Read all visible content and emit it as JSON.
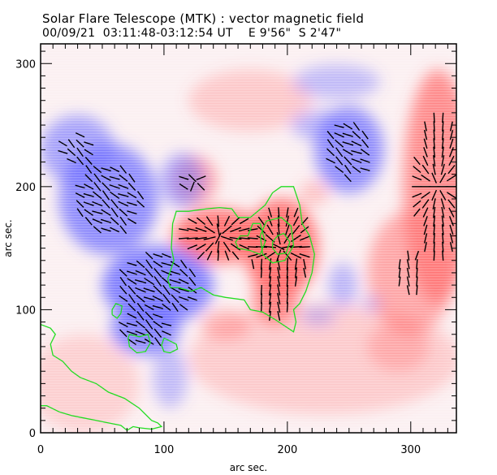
{
  "header": {
    "title": "Solar Flare Telescope (MTK) : vector magnetic field",
    "subtitle_date": "00/09/21",
    "subtitle_time": "03:11:48-03:12:54 UT",
    "subtitle_pos_ew": "E 9'56\"",
    "subtitle_pos_ns": "S 2'47\""
  },
  "chart_data": {
    "type": "heatmap",
    "title": "Solar Flare Telescope (MTK) : vector magnetic field",
    "subtitle": "00/09/21  03:11:48-03:12:54 UT    E 9'56\"  S 2'47\"",
    "xlabel": "arc sec.",
    "ylabel": "arc sec.",
    "xlim": [
      0,
      337
    ],
    "ylim": [
      0,
      316
    ],
    "xticks": [
      0,
      100,
      200,
      300
    ],
    "yticks": [
      0,
      100,
      200,
      300
    ],
    "xtick_labels": [
      "0",
      "100",
      "200",
      "300"
    ],
    "ytick_labels": [
      "0",
      "100",
      "200",
      "300"
    ],
    "minor_tick_step": 10,
    "colors": {
      "positive": "#ff5a5a",
      "negative": "#5a5aff",
      "contour": "#22dd22",
      "vector": "#000000",
      "frame": "#000000"
    },
    "polarity_regions": [
      {
        "name": "positive-core",
        "polarity": "positive",
        "x": 145,
        "y": 160,
        "rx": 38,
        "ry": 22,
        "strength": 0.95
      },
      {
        "name": "positive-core-east",
        "polarity": "positive",
        "x": 195,
        "y": 150,
        "rx": 30,
        "ry": 40,
        "strength": 0.95
      },
      {
        "name": "positive-bridge",
        "polarity": "positive",
        "x": 125,
        "y": 205,
        "rx": 18,
        "ry": 20,
        "strength": 0.6
      },
      {
        "name": "positive-tail-south",
        "polarity": "positive",
        "x": 190,
        "y": 110,
        "rx": 18,
        "ry": 22,
        "strength": 0.8
      },
      {
        "name": "positive-right-edge",
        "polarity": "positive",
        "x": 322,
        "y": 200,
        "rx": 28,
        "ry": 95,
        "strength": 0.75
      },
      {
        "name": "positive-right-mid",
        "polarity": "positive",
        "x": 300,
        "y": 130,
        "rx": 35,
        "ry": 50,
        "strength": 0.55
      },
      {
        "name": "positive-diffuse-north",
        "polarity": "positive",
        "x": 170,
        "y": 270,
        "rx": 50,
        "ry": 25,
        "strength": 0.3
      },
      {
        "name": "positive-diffuse-south",
        "polarity": "positive",
        "x": 230,
        "y": 60,
        "rx": 110,
        "ry": 45,
        "strength": 0.28
      },
      {
        "name": "positive-diffuse-sw",
        "polarity": "positive",
        "x": 35,
        "y": 40,
        "rx": 45,
        "ry": 40,
        "strength": 0.25
      },
      {
        "name": "positive-patch-mid",
        "polarity": "positive",
        "x": 222,
        "y": 195,
        "rx": 12,
        "ry": 10,
        "strength": 0.35
      },
      {
        "name": "positive-patch-south",
        "polarity": "positive",
        "x": 150,
        "y": 88,
        "rx": 20,
        "ry": 12,
        "strength": 0.45
      },
      {
        "name": "positive-patch-se",
        "polarity": "positive",
        "x": 290,
        "y": 70,
        "rx": 25,
        "ry": 20,
        "strength": 0.35
      },
      {
        "name": "negative-west-arm",
        "polarity": "negative",
        "x": 55,
        "y": 190,
        "rx": 40,
        "ry": 45,
        "strength": 0.75
      },
      {
        "name": "negative-north-arm",
        "polarity": "negative",
        "x": 30,
        "y": 230,
        "rx": 30,
        "ry": 28,
        "strength": 0.6
      },
      {
        "name": "negative-central",
        "polarity": "negative",
        "x": 95,
        "y": 120,
        "rx": 45,
        "ry": 32,
        "strength": 0.85
      },
      {
        "name": "negative-south",
        "polarity": "negative",
        "x": 85,
        "y": 85,
        "rx": 28,
        "ry": 22,
        "strength": 0.8
      },
      {
        "name": "negative-lower-tail",
        "polarity": "negative",
        "x": 105,
        "y": 45,
        "rx": 14,
        "ry": 25,
        "strength": 0.4
      },
      {
        "name": "negative-upper-band",
        "polarity": "negative",
        "x": 115,
        "y": 205,
        "rx": 18,
        "ry": 22,
        "strength": 0.55
      },
      {
        "name": "negative-ne",
        "polarity": "negative",
        "x": 250,
        "y": 230,
        "rx": 28,
        "ry": 35,
        "strength": 0.75
      },
      {
        "name": "negative-ne-top",
        "polarity": "negative",
        "x": 240,
        "y": 285,
        "rx": 35,
        "ry": 14,
        "strength": 0.4
      },
      {
        "name": "negative-ne-arm",
        "polarity": "negative",
        "x": 225,
        "y": 250,
        "rx": 22,
        "ry": 12,
        "strength": 0.45
      },
      {
        "name": "negative-east-mid",
        "polarity": "negative",
        "x": 245,
        "y": 120,
        "rx": 12,
        "ry": 18,
        "strength": 0.45
      },
      {
        "name": "negative-east-lower",
        "polarity": "negative",
        "x": 225,
        "y": 95,
        "rx": 14,
        "ry": 8,
        "strength": 0.35
      },
      {
        "name": "negative-east-patch",
        "polarity": "negative",
        "x": 268,
        "y": 105,
        "rx": 8,
        "ry": 6,
        "strength": 0.35
      }
    ],
    "contours": [
      {
        "name": "contour-main",
        "points": [
          [
            103,
            125
          ],
          [
            105,
            118
          ],
          [
            112,
            118
          ],
          [
            122,
            115
          ],
          [
            130,
            118
          ],
          [
            140,
            112
          ],
          [
            150,
            110
          ],
          [
            165,
            108
          ],
          [
            170,
            100
          ],
          [
            180,
            98
          ],
          [
            190,
            92
          ],
          [
            205,
            82
          ],
          [
            207,
            90
          ],
          [
            205,
            100
          ],
          [
            210,
            105
          ],
          [
            215,
            115
          ],
          [
            220,
            130
          ],
          [
            222,
            145
          ],
          [
            218,
            160
          ],
          [
            212,
            170
          ],
          [
            210,
            185
          ],
          [
            205,
            200
          ],
          [
            195,
            200
          ],
          [
            188,
            195
          ],
          [
            182,
            185
          ],
          [
            170,
            175
          ],
          [
            160,
            175
          ],
          [
            155,
            182
          ],
          [
            145,
            183
          ],
          [
            135,
            182
          ],
          [
            120,
            180
          ],
          [
            110,
            180
          ],
          [
            107,
            170
          ],
          [
            106,
            150
          ],
          [
            108,
            140
          ],
          [
            103,
            125
          ]
        ]
      },
      {
        "name": "contour-inner-west",
        "points": [
          [
            160,
            150
          ],
          [
            170,
            148
          ],
          [
            178,
            145
          ],
          [
            182,
            155
          ],
          [
            178,
            170
          ],
          [
            172,
            170
          ],
          [
            168,
            160
          ],
          [
            162,
            160
          ],
          [
            158,
            155
          ],
          [
            160,
            150
          ]
        ]
      },
      {
        "name": "contour-inner-east",
        "points": [
          [
            180,
            145
          ],
          [
            188,
            138
          ],
          [
            198,
            140
          ],
          [
            205,
            152
          ],
          [
            203,
            168
          ],
          [
            195,
            175
          ],
          [
            183,
            172
          ],
          [
            178,
            160
          ],
          [
            180,
            145
          ]
        ]
      },
      {
        "name": "contour-core-east",
        "points": [
          [
            188,
            150
          ],
          [
            192,
            145
          ],
          [
            199,
            146
          ],
          [
            202,
            155
          ],
          [
            197,
            162
          ],
          [
            192,
            160
          ],
          [
            188,
            155
          ],
          [
            188,
            150
          ]
        ]
      },
      {
        "name": "contour-small-1",
        "points": [
          [
            58,
            96
          ],
          [
            62,
            93
          ],
          [
            65,
            97
          ],
          [
            66,
            103
          ],
          [
            61,
            105
          ],
          [
            58,
            100
          ],
          [
            58,
            96
          ]
        ]
      },
      {
        "name": "contour-small-2",
        "points": [
          [
            72,
            80
          ],
          [
            80,
            78
          ],
          [
            87,
            80
          ],
          [
            89,
            73
          ],
          [
            85,
            66
          ],
          [
            78,
            65
          ],
          [
            72,
            70
          ],
          [
            71,
            77
          ],
          [
            72,
            80
          ]
        ]
      },
      {
        "name": "contour-small-3",
        "points": [
          [
            100,
            77
          ],
          [
            106,
            74
          ],
          [
            110,
            72
          ],
          [
            111,
            68
          ],
          [
            105,
            65
          ],
          [
            100,
            66
          ],
          [
            98,
            71
          ],
          [
            100,
            77
          ]
        ]
      },
      {
        "name": "contour-sw-outer",
        "points": [
          [
            0,
            88
          ],
          [
            8,
            85
          ],
          [
            12,
            80
          ],
          [
            8,
            72
          ],
          [
            10,
            63
          ],
          [
            18,
            58
          ],
          [
            25,
            50
          ],
          [
            32,
            45
          ],
          [
            45,
            40
          ],
          [
            55,
            33
          ],
          [
            68,
            28
          ],
          [
            80,
            20
          ],
          [
            90,
            10
          ],
          [
            95,
            8
          ],
          [
            98,
            5
          ],
          [
            90,
            3
          ],
          [
            80,
            4
          ],
          [
            75,
            5
          ],
          [
            70,
            2
          ],
          [
            65,
            6
          ],
          [
            55,
            8
          ],
          [
            45,
            10
          ],
          [
            35,
            12
          ],
          [
            25,
            14
          ],
          [
            15,
            17
          ],
          [
            5,
            22
          ],
          [
            0,
            22
          ]
        ]
      }
    ],
    "vector_field": {
      "note": "transverse field vectors drawn as short line segments where field is strong",
      "grid_step": 7,
      "min_strength": 0.5
    }
  }
}
